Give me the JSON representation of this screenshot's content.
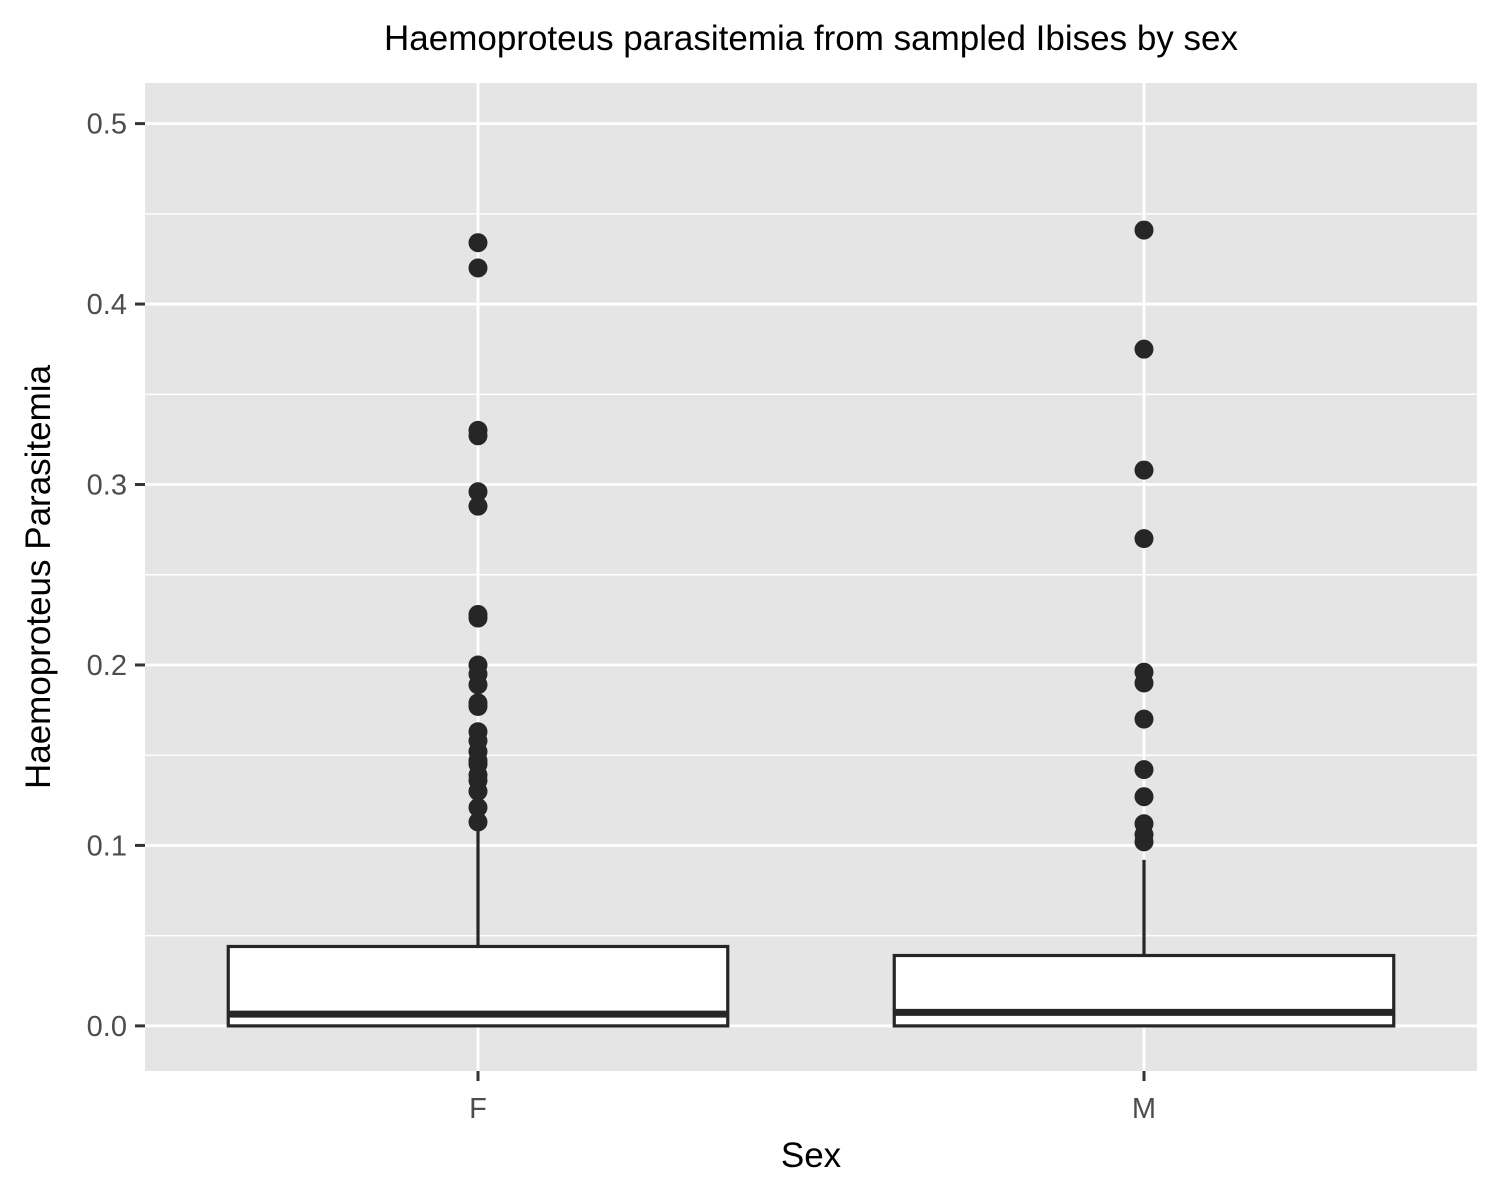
{
  "colors": {
    "panel_background": "#e5e5e5",
    "grid": "#ffffff",
    "box_fill": "#ffffff",
    "box_line": "#262626",
    "tick_text": "#4d4d4d",
    "text": "#000000"
  },
  "chart_data": {
    "type": "boxplot",
    "title": "Haemoproteus parasitemia from sampled Ibises by sex",
    "xlabel": "Sex",
    "ylabel": "Haemoproteus Parasitemia",
    "ylim": [
      -0.025,
      0.5225
    ],
    "yticks": [
      0.0,
      0.1,
      0.2,
      0.3,
      0.4,
      0.5
    ],
    "ytick_labels": [
      "0.0",
      "0.1",
      "0.2",
      "0.3",
      "0.4",
      "0.5"
    ],
    "grid": true,
    "categories": [
      "F",
      "M"
    ],
    "boxes": [
      {
        "category": "F",
        "lower_whisker": 0.0,
        "q1": 0.0,
        "median": 0.0065,
        "q3": 0.044,
        "upper_whisker": 0.109,
        "outliers": [
          0.434,
          0.42,
          0.33,
          0.327,
          0.296,
          0.288,
          0.228,
          0.226,
          0.2,
          0.195,
          0.189,
          0.179,
          0.177,
          0.163,
          0.158,
          0.152,
          0.147,
          0.145,
          0.139,
          0.136,
          0.13,
          0.121,
          0.113
        ]
      },
      {
        "category": "M",
        "lower_whisker": 0.0,
        "q1": 0.0,
        "median": 0.0075,
        "q3": 0.039,
        "upper_whisker": 0.092,
        "outliers": [
          0.441,
          0.375,
          0.308,
          0.27,
          0.196,
          0.19,
          0.17,
          0.142,
          0.127,
          0.112,
          0.106,
          0.102
        ]
      }
    ]
  }
}
